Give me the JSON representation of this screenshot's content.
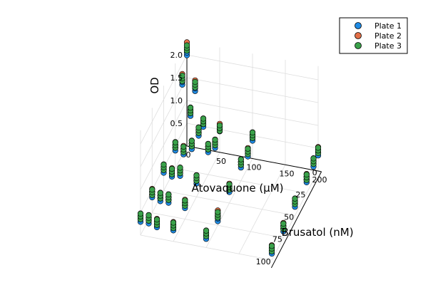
{
  "colors": {
    "plate1": "#1f8be4",
    "plate2": "#e26f46",
    "plate3": "#3aa14a",
    "grid": "#dddddd"
  },
  "chart_data": {
    "type": "scatter3d",
    "xlabel": "Atovaquone (µM)",
    "ylabel": "Brusatol (nM)",
    "zlabel": "OD",
    "xticks": [
      "0",
      "50",
      "100",
      "150",
      "200"
    ],
    "yticks": [
      "0",
      "25",
      "50",
      "75",
      "100"
    ],
    "zticks": [
      "0.5",
      "1.0",
      "1.5",
      "2.0"
    ],
    "xlim": [
      0,
      200
    ],
    "ylim": [
      0,
      100
    ],
    "zlim": [
      0,
      2.3
    ],
    "legend_position": "top-right",
    "grid": true,
    "x_levels": [
      0,
      12.5,
      25,
      50,
      100,
      200
    ],
    "y_levels": [
      0,
      10,
      25,
      50,
      75,
      100
    ],
    "series": [
      {
        "name": "Plate 1",
        "color": "#1f8be4",
        "od": [
          [
            2.05,
            1.3,
            0.55,
            0.52,
            0.45,
            0.4
          ],
          [
            1.6,
            0.95,
            0.55,
            0.35,
            0.3,
            0.35
          ],
          [
            0.45,
            0.4,
            0.55,
            0.55,
            0.35,
            0.3
          ],
          [
            0.45,
            0.4,
            0.45,
            0.35,
            0.3,
            0.25
          ],
          [
            0.4,
            0.35,
            0.35,
            0.3,
            0.15,
            0.2
          ],
          [
            0.35,
            0.35,
            0.3,
            0.3,
            0.25,
            0.2
          ]
        ]
      },
      {
        "name": "Plate 2",
        "color": "#e26f46",
        "od": [
          [
            2.2,
            1.4,
            0.6,
            0.55,
            0.5,
            0.45
          ],
          [
            1.7,
            1.0,
            0.6,
            0.4,
            0.35,
            0.4
          ],
          [
            0.5,
            0.45,
            0.6,
            0.6,
            0.4,
            0.35
          ],
          [
            0.5,
            0.45,
            0.5,
            0.4,
            0.35,
            0.3
          ],
          [
            0.45,
            0.4,
            0.4,
            0.35,
            0.25,
            0.25
          ],
          [
            0.4,
            0.4,
            0.35,
            0.35,
            0.3,
            0.25
          ]
        ]
      },
      {
        "name": "Plate 3",
        "color": "#3aa14a",
        "od": [
          [
            2.12,
            1.35,
            0.58,
            0.5,
            0.48,
            0.42
          ],
          [
            1.65,
            0.98,
            0.58,
            0.38,
            0.32,
            0.38
          ],
          [
            0.48,
            0.42,
            0.58,
            0.58,
            0.38,
            0.32
          ],
          [
            0.48,
            0.42,
            0.48,
            0.38,
            0.32,
            0.28
          ],
          [
            0.42,
            0.38,
            0.38,
            0.32,
            0.2,
            0.22
          ],
          [
            0.38,
            0.38,
            0.32,
            0.32,
            0.28,
            0.22
          ]
        ]
      }
    ]
  },
  "legend": {
    "items": [
      "Plate 1",
      "Plate 2",
      "Plate 3"
    ]
  }
}
